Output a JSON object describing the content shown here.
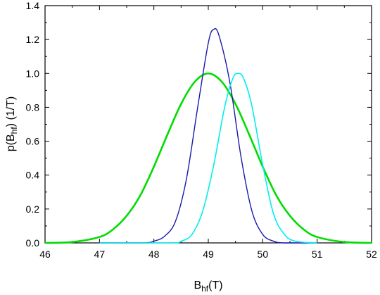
{
  "chart_data": {
    "type": "line",
    "xlim": [
      46,
      52
    ],
    "ylim": [
      0,
      1.4
    ],
    "x_ticks": [
      "46",
      "47",
      "48",
      "49",
      "50",
      "51",
      "52"
    ],
    "y_ticks": [
      "0.0",
      "0.2",
      "0.4",
      "0.6",
      "0.8",
      "1.0",
      "1.2",
      "1.4"
    ],
    "xlabel": {
      "main": "B",
      "sub": "hf",
      "unit": "(T)"
    },
    "ylabel": {
      "prefix": "p(B",
      "sub": "hf",
      "suffix": ") (1/T)"
    },
    "grid": false,
    "legend": "none",
    "series": [
      {
        "color": "#00dd00",
        "x": [
          46.0,
          46.5,
          47.0,
          47.25,
          47.5,
          47.75,
          48.0,
          48.25,
          48.5,
          48.75,
          49.0,
          49.25,
          49.5,
          49.75,
          50.0,
          50.25,
          50.5,
          50.75,
          51.0,
          51.5,
          52.0
        ],
        "y": [
          0.0,
          0.005,
          0.035,
          0.08,
          0.16,
          0.28,
          0.45,
          0.64,
          0.82,
          0.95,
          1.0,
          0.95,
          0.82,
          0.64,
          0.45,
          0.28,
          0.16,
          0.08,
          0.035,
          0.005,
          0.0
        ]
      },
      {
        "color": "#1a1aaa",
        "x": [
          47.0,
          47.8,
          48.0,
          48.2,
          48.4,
          48.6,
          48.8,
          49.0,
          49.1,
          49.2,
          49.4,
          49.6,
          49.8,
          50.0,
          50.2,
          50.4,
          51.0
        ],
        "y": [
          0.0,
          0.0,
          0.01,
          0.04,
          0.13,
          0.38,
          0.79,
          1.18,
          1.26,
          1.22,
          0.94,
          0.51,
          0.19,
          0.05,
          0.01,
          0.0,
          0.0
        ]
      },
      {
        "color": "#00eeee",
        "x": [
          47.0,
          48.3,
          48.5,
          48.7,
          48.9,
          49.1,
          49.3,
          49.45,
          49.55,
          49.65,
          49.8,
          50.0,
          50.2,
          50.4,
          50.6,
          51.0
        ],
        "y": [
          0.0,
          0.0,
          0.01,
          0.05,
          0.19,
          0.46,
          0.8,
          0.97,
          1.0,
          0.97,
          0.81,
          0.46,
          0.17,
          0.05,
          0.01,
          0.0
        ]
      }
    ]
  }
}
